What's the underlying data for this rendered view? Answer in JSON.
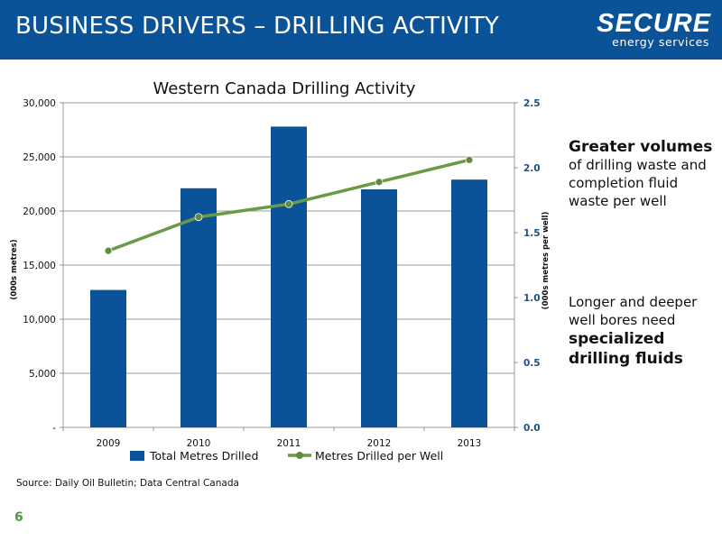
{
  "header": {
    "title": "BUSINESS DRIVERS – DRILLING ACTIVITY",
    "logo_main": "SECURE",
    "logo_sub": "energy services"
  },
  "colors": {
    "header_bg": "#0a5399",
    "bar": "#0a5399",
    "line": "#6a9a45",
    "page_number": "#4a9c3f"
  },
  "chart_data": {
    "type": "bar",
    "title": "Western Canada Drilling Activity",
    "categories": [
      "2009",
      "2010",
      "2011",
      "2012",
      "2013"
    ],
    "series": [
      {
        "name": "Total Metres Drilled",
        "type": "bar",
        "axis": "left",
        "values": [
          12700,
          22100,
          27800,
          22000,
          22900
        ]
      },
      {
        "name": "Metres Drilled per Well",
        "type": "line",
        "axis": "right",
        "values": [
          1.36,
          1.62,
          1.72,
          1.89,
          2.06
        ]
      }
    ],
    "ylabel": "(000s metres)",
    "y2label": "(000s metres per well)",
    "ylim": [
      0,
      30000
    ],
    "y2lim": [
      0,
      2.5
    ],
    "yticks": [
      "-",
      "5,000",
      "10,000",
      "15,000",
      "20,000",
      "25,000",
      "30,000"
    ],
    "y2ticks": [
      "0.0",
      "0.5",
      "1.0",
      "1.5",
      "2.0",
      "2.5"
    ],
    "grid": true,
    "legend": "bottom"
  },
  "notes": {
    "note1_strong": "Greater volumes",
    "note1_rest": "of drilling waste and completion fluid waste per well",
    "note2_plain": "Longer and deeper well bores need",
    "note2_strong": "specialized drilling fluids"
  },
  "source": "Source: Daily Oil Bulletin; Data Central Canada",
  "page_number": "6"
}
